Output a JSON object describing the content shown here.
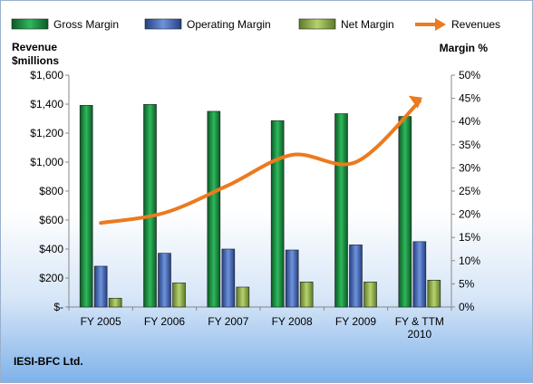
{
  "chart_data": {
    "type": "bar",
    "categories": [
      "FY 2005",
      "FY 2006",
      "FY 2007",
      "FY 2008",
      "FY 2009",
      "FY & TTM\n2010"
    ],
    "series": [
      {
        "name": "Gross Margin",
        "axis": "right",
        "kind": "bar",
        "color": "#138a3c",
        "values": [
          43.5,
          43.7,
          42.2,
          40.2,
          41.7,
          41.1
        ]
      },
      {
        "name": "Operating Margin",
        "axis": "right",
        "kind": "bar",
        "color": "#3d64b8",
        "values": [
          8.8,
          11.6,
          12.5,
          12.3,
          13.4,
          14.1
        ]
      },
      {
        "name": "Net Margin",
        "axis": "right",
        "kind": "bar",
        "color": "#8cb04a",
        "values": [
          1.9,
          5.2,
          4.3,
          5.4,
          5.4,
          5.8
        ]
      },
      {
        "name": "Revenues",
        "axis": "left",
        "kind": "line",
        "color": "#ec7a1e",
        "values": [
          580,
          650,
          840,
          1050,
          1000,
          1420
        ]
      }
    ],
    "ylabel_left": "Revenue\n$millions",
    "ylabel_right": "Margin  %",
    "ylim_left": [
      0,
      1600
    ],
    "ylim_right": [
      0,
      50
    ],
    "yticks_left": [
      "$-",
      "$200",
      "$400",
      "$600",
      "$800",
      "$1,000",
      "$1,200",
      "$1,400",
      "$1,600"
    ],
    "yticks_right": [
      "0%",
      "5%",
      "10%",
      "15%",
      "20%",
      "25%",
      "30%",
      "35%",
      "40%",
      "45%",
      "50%"
    ],
    "legend_position": "top",
    "grid": false
  },
  "footer": {
    "company": "IESI-BFC Ltd."
  }
}
